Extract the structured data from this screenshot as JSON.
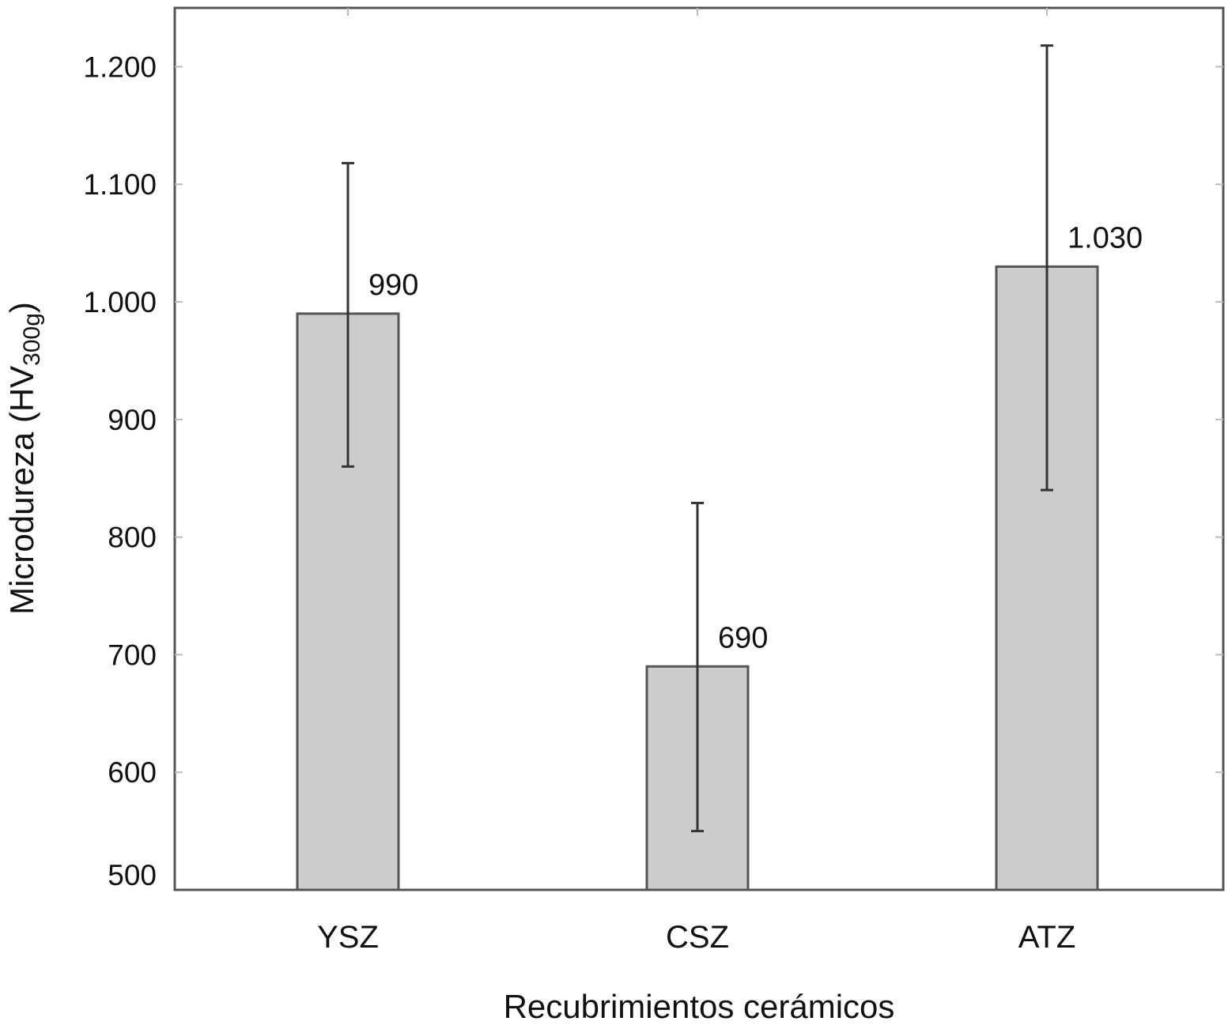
{
  "chart_data": {
    "type": "bar",
    "categories": [
      "YSZ",
      "CSZ",
      "ATZ"
    ],
    "values": [
      990,
      690,
      1030
    ],
    "value_labels": [
      "990",
      "690",
      "1.030"
    ],
    "error_bars": [
      {
        "low": 860,
        "high": 1118
      },
      {
        "low": 550,
        "high": 829
      },
      {
        "low": 840,
        "high": 1218
      }
    ],
    "ylim": [
      500,
      1250
    ],
    "yticks": [
      500,
      600,
      700,
      800,
      900,
      1000,
      1100,
      1200
    ],
    "ytick_labels": [
      "500",
      "600",
      "700",
      "800",
      "900",
      "1.000",
      "1.100",
      "1.200"
    ],
    "ylabel": "Microdureza (HV",
    "ylabel_sub": "300g",
    "ylabel_close": ")",
    "xlabel": "Recubrimientos cerámicos",
    "grid": false,
    "colors": {
      "bar_fill": "#cccccc",
      "bar_stroke": "#555555",
      "error": "#333333",
      "axis": "#555555"
    }
  }
}
